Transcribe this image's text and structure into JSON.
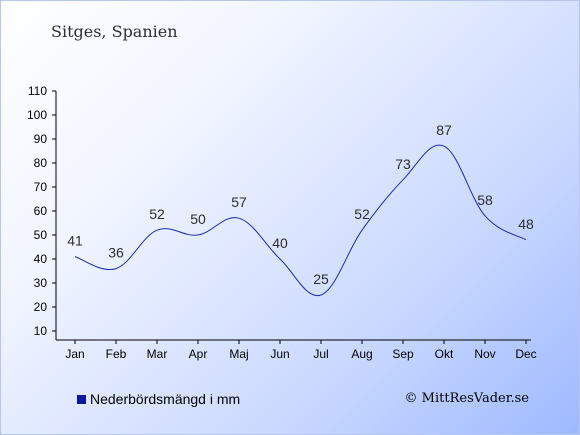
{
  "header": {
    "title": "Sitges, Spanien"
  },
  "legend": {
    "label": "Nederbördsmängd i mm",
    "color": "#0a1a9e"
  },
  "footer": {
    "copyright": "© MittResVader.se"
  },
  "chart_data": {
    "type": "line",
    "categories": [
      "Jan",
      "Feb",
      "Mar",
      "Apr",
      "Maj",
      "Jun",
      "Jul",
      "Aug",
      "Sep",
      "Okt",
      "Nov",
      "Dec"
    ],
    "series": [
      {
        "values": [
          41,
          36,
          52,
          50,
          57,
          40,
          25,
          52,
          73,
          87,
          58,
          48
        ],
        "color": "#1a2bb0"
      }
    ],
    "y_ticks": [
      10,
      20,
      30,
      40,
      50,
      60,
      70,
      80,
      90,
      100,
      110
    ],
    "ylim": [
      10,
      110
    ],
    "grid": false,
    "legend_position": "bottom-left"
  }
}
